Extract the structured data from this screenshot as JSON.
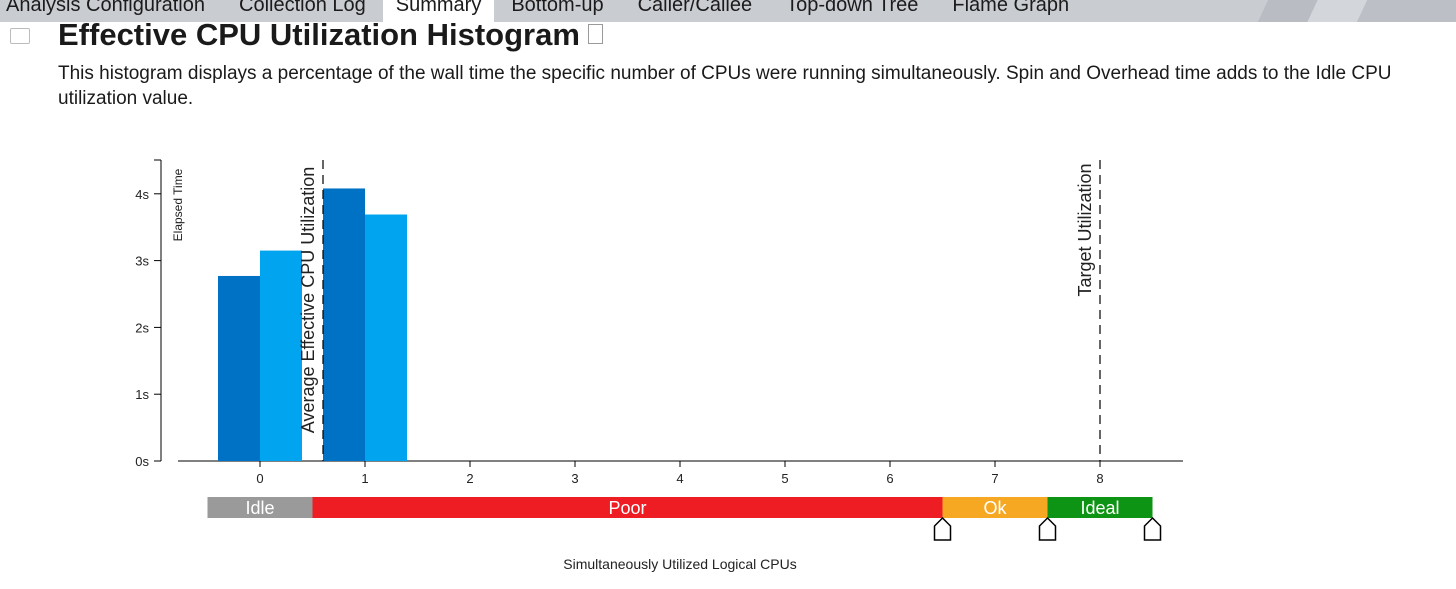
{
  "tabs": [
    {
      "label": "Analysis Configuration",
      "active": false
    },
    {
      "label": "Collection Log",
      "active": false
    },
    {
      "label": "Summary",
      "active": true
    },
    {
      "label": "Bottom-up",
      "active": false
    },
    {
      "label": "Caller/Callee",
      "active": false
    },
    {
      "label": "Top-down Tree",
      "active": false
    },
    {
      "label": "Flame Graph",
      "active": false
    }
  ],
  "section": {
    "title": "Effective CPU Utilization Histogram",
    "description_line1": "This histogram displays a percentage of the wall time the specific number of CPUs were running simultaneously. Spin and Overhead time adds to the Idle CPU",
    "description_line2": "utilization value."
  },
  "chart_data": {
    "type": "bar",
    "ylabel": "Elapsed Time",
    "xlabel": "Simultaneously Utilized Logical CPUs",
    "yticks": [
      "0s",
      "1s",
      "2s",
      "3s",
      "4s"
    ],
    "ylim": [
      0,
      4.5
    ],
    "xticks": [
      "0",
      "1",
      "2",
      "3",
      "4",
      "5",
      "6",
      "7",
      "8"
    ],
    "series": [
      {
        "values": [
          2.77,
          4.08,
          0,
          0,
          0,
          0,
          0,
          0,
          0
        ],
        "color": "#0072c6"
      },
      {
        "values": [
          3.15,
          3.69,
          0,
          0,
          0,
          0,
          0,
          0,
          0
        ],
        "color": "#00a4ef"
      }
    ],
    "markers": [
      {
        "label": "Average Effective CPU Utilization",
        "x": 0.6
      },
      {
        "label": "Target Utilization",
        "x": 8.0
      }
    ],
    "ranges": [
      {
        "label": "Idle",
        "from": -0.5,
        "to": 0.5,
        "color": "#9a9a9a"
      },
      {
        "label": "Poor",
        "from": 0.5,
        "to": 6.5,
        "color": "#ee1d24"
      },
      {
        "label": "Ok",
        "from": 6.5,
        "to": 7.5,
        "color": "#f7a823"
      },
      {
        "label": "Ideal",
        "from": 7.5,
        "to": 8.5,
        "color": "#0e9414"
      }
    ],
    "range_handles": [
      6.5,
      7.5,
      8.5
    ],
    "grid": false
  }
}
